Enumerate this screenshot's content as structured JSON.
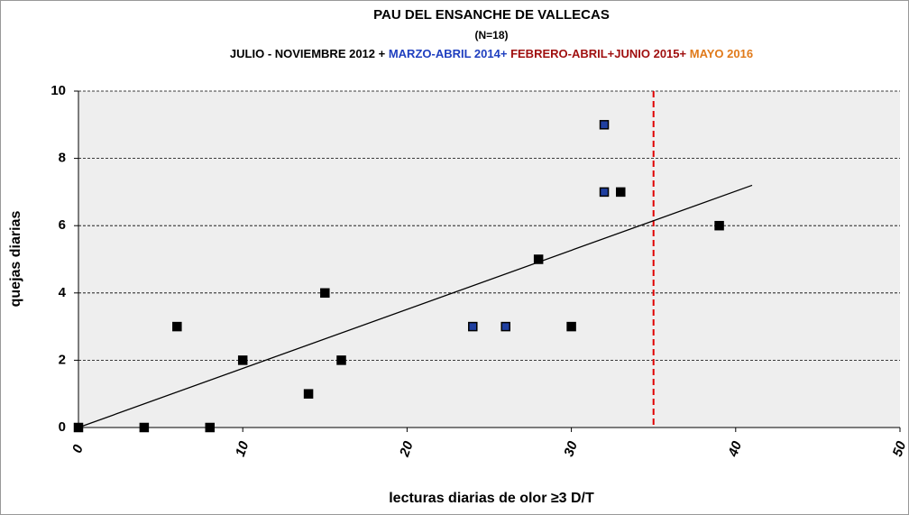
{
  "chart_data": {
    "type": "scatter",
    "title": "PAU DEL ENSANCHE DE VALLECAS",
    "subtitle": "(N=18)",
    "period_segments": [
      {
        "text": "JULIO - NOVIEMBRE  2012 + ",
        "color": "#000000"
      },
      {
        "text": "MARZO-ABRIL  2014+ ",
        "color": "#1f3fbf"
      },
      {
        "text": "FEBRERO-ABRIL+JUNIO  2015+ ",
        "color": "#a01010"
      },
      {
        "text": "MAYO 2016",
        "color": "#e07a1a"
      }
    ],
    "x_label": "lecturas diarias de olor ≥3 D/T",
    "y_label": "quejas diarias",
    "xlim": [
      0,
      50
    ],
    "xticks": [
      0,
      10,
      20,
      30,
      40,
      50
    ],
    "ylim": [
      0,
      10
    ],
    "yticks": [
      0,
      2,
      4,
      6,
      8,
      10
    ],
    "grid": true,
    "series": [
      {
        "color": "#000000",
        "x": [
          0,
          4,
          8,
          6,
          10,
          14,
          15,
          16,
          28,
          30,
          33,
          39
        ],
        "values": [
          0,
          0,
          0,
          3,
          2,
          1,
          4,
          2,
          5,
          3,
          7,
          6
        ]
      },
      {
        "color": "#1f3fa0",
        "x": [
          24,
          26,
          32,
          32
        ],
        "values": [
          3,
          3,
          9,
          7
        ]
      }
    ],
    "trendline": {
      "color": "#000000",
      "x": [
        0,
        41
      ],
      "values": [
        0,
        7.2
      ]
    },
    "reference_line": {
      "x": 35,
      "color": "#e00000"
    }
  }
}
